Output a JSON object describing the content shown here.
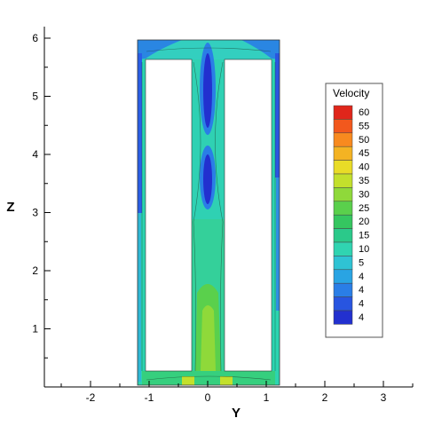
{
  "chart_data": {
    "type": "heatmap",
    "title": "",
    "xlabel": "Y",
    "ylabel": "Z",
    "xlim": [
      -2.7,
      3.6
    ],
    "ylim": [
      0.1,
      6.2
    ],
    "x_ticks": [
      -2,
      -1,
      0,
      1,
      2,
      3
    ],
    "y_ticks": [
      1,
      2,
      3,
      4,
      5,
      6
    ],
    "legend": {
      "title": "Velocity",
      "placement": "right",
      "levels": [
        "60",
        "55",
        "50",
        "45",
        "40",
        "35",
        "30",
        "25",
        "20",
        "15",
        "10",
        "5",
        "4",
        "4",
        "4",
        "4"
      ],
      "colors": [
        "#e0261b",
        "#f2581d",
        "#f88a1f",
        "#f4b323",
        "#e9dc27",
        "#c3e02c",
        "#8fd93a",
        "#5ad04c",
        "#35c660",
        "#2bc98a",
        "#30d4b1",
        "#2fc3d4",
        "#29a4e3",
        "#2a7ee6",
        "#2855e0",
        "#2230cf"
      ]
    },
    "domain": {
      "outer": {
        "x": [
          -1.2,
          1.2
        ],
        "z": [
          0.1,
          5.92
        ]
      },
      "cutouts": [
        {
          "x": [
            -1.07,
            -0.28
          ],
          "z": [
            0.35,
            5.6
          ]
        },
        {
          "x": [
            0.28,
            1.07
          ],
          "z": [
            0.35,
            5.6
          ]
        }
      ]
    }
  }
}
